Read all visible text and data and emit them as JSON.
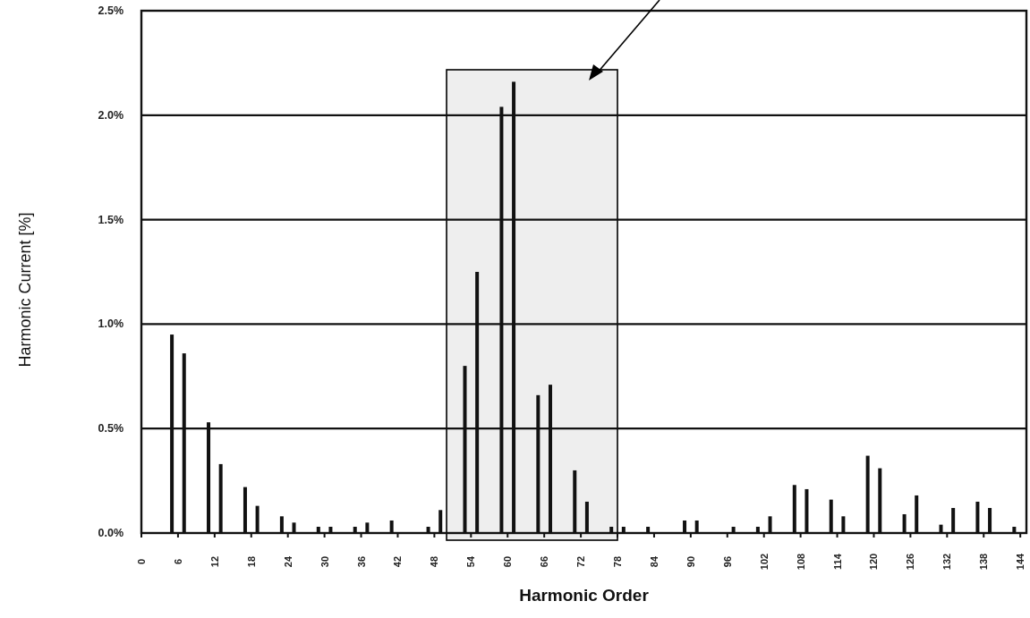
{
  "chart_data": {
    "type": "bar",
    "xlabel": "Harmonic Order",
    "ylabel": "Harmonic Current [%]",
    "x": [
      5,
      7,
      11,
      13,
      17,
      19,
      23,
      25,
      29,
      31,
      35,
      37,
      41,
      47,
      49,
      53,
      55,
      59,
      61,
      65,
      67,
      71,
      73,
      77,
      79,
      83,
      89,
      91,
      97,
      101,
      103,
      107,
      109,
      113,
      115,
      119,
      121,
      125,
      127,
      131,
      133,
      137,
      139,
      143
    ],
    "values": [
      0.95,
      0.86,
      0.53,
      0.33,
      0.22,
      0.13,
      0.08,
      0.05,
      0.03,
      0.03,
      0.03,
      0.05,
      0.06,
      0.03,
      0.11,
      0.8,
      1.25,
      2.04,
      2.16,
      0.66,
      0.71,
      0.3,
      0.15,
      0.03,
      0.03,
      0.03,
      0.06,
      0.06,
      0.03,
      0.03,
      0.08,
      0.23,
      0.21,
      0.16,
      0.08,
      0.37,
      0.31,
      0.09,
      0.18,
      0.04,
      0.12,
      0.15,
      0.12,
      0.03
    ],
    "color": "#111111",
    "xlim": [
      0,
      145
    ],
    "xticks": [
      0,
      6,
      12,
      18,
      24,
      30,
      36,
      42,
      48,
      54,
      60,
      66,
      72,
      78,
      84,
      90,
      96,
      102,
      108,
      114,
      120,
      126,
      132,
      138,
      144
    ],
    "ylim": [
      0,
      2.5
    ],
    "yticks": [
      {
        "value": 0,
        "label": "0.0%"
      },
      {
        "value": 0.5,
        "label": "0.5%"
      },
      {
        "value": 1,
        "label": "1.0%"
      },
      {
        "value": 1.5,
        "label": "1.5%"
      },
      {
        "value": 2,
        "label": "2.0%"
      },
      {
        "value": 2.5,
        "label": "2.5%"
      }
    ],
    "grid": "y",
    "bands": [
      {
        "axis": "x",
        "from": 50,
        "to": 78,
        "color": "#eeeeee"
      }
    ]
  }
}
